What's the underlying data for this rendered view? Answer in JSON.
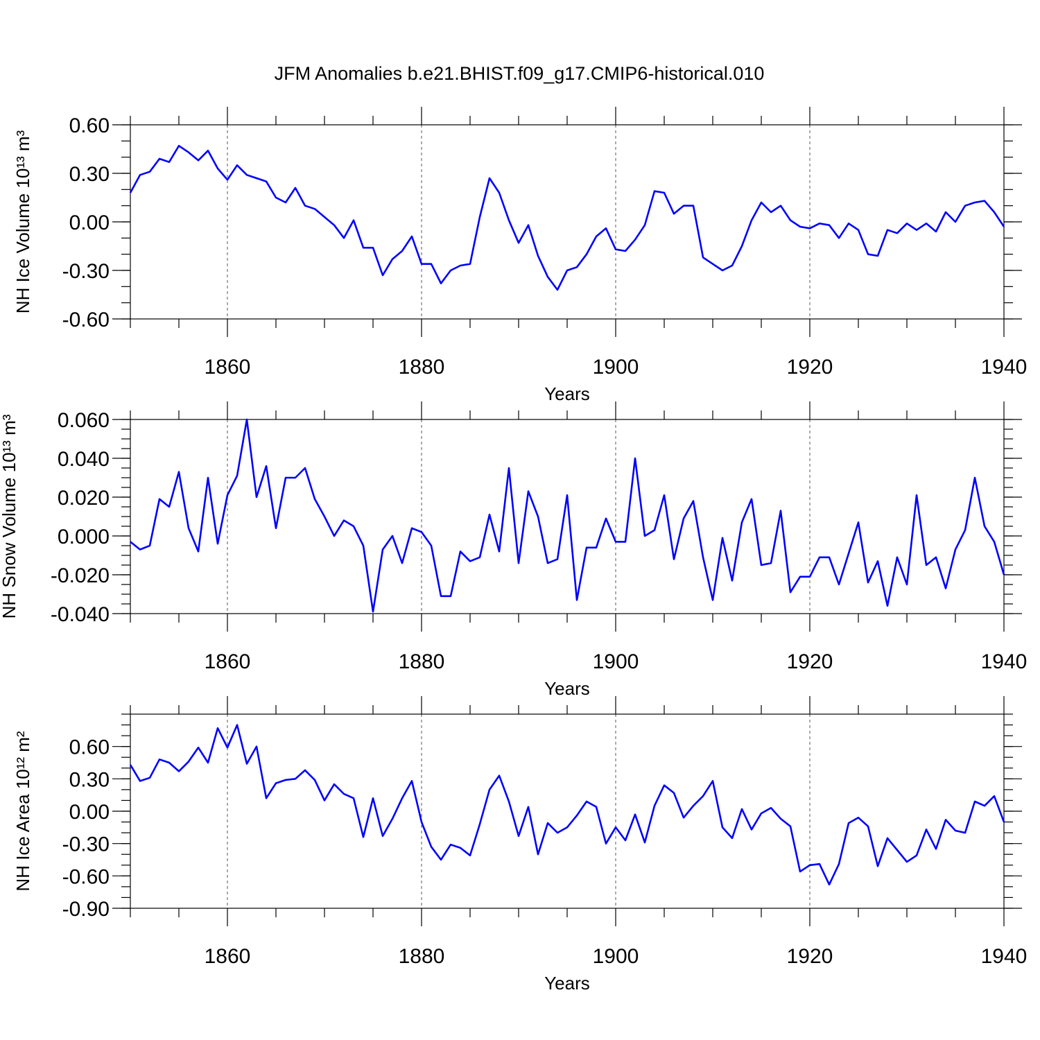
{
  "figure": {
    "title": "JFM Anomalies b.e21.BHIST.f09_g17.CMIP6-historical.010",
    "line_color": "#0000ff"
  },
  "chart_data": [
    {
      "type": "line",
      "name": "ice-volume",
      "ylabel": "NH Ice Volume 10¹³ m³",
      "xlabel": "Years",
      "xlim": [
        1850,
        1940
      ],
      "ylim": [
        -0.6,
        0.6
      ],
      "x_ticks": [
        1860,
        1880,
        1900,
        1920,
        1940
      ],
      "x_tick_labels": [
        "1860",
        "1880",
        "1900",
        "1920",
        "1940"
      ],
      "y_ticks": [
        -0.6,
        -0.3,
        0.0,
        0.3,
        0.6
      ],
      "y_tick_labels": [
        "-0.60",
        "-0.30",
        "0.00",
        "0.30",
        "0.60"
      ],
      "y_minor_step": 0.1,
      "x_start": 1850,
      "values": [
        0.18,
        0.29,
        0.31,
        0.39,
        0.37,
        0.47,
        0.43,
        0.38,
        0.44,
        0.33,
        0.26,
        0.35,
        0.29,
        0.27,
        0.25,
        0.15,
        0.12,
        0.21,
        0.1,
        0.08,
        0.03,
        -0.02,
        -0.1,
        0.01,
        -0.16,
        -0.16,
        -0.33,
        -0.23,
        -0.18,
        -0.09,
        -0.26,
        -0.26,
        -0.38,
        -0.3,
        -0.27,
        -0.26,
        0.03,
        0.27,
        0.18,
        0.01,
        -0.13,
        -0.02,
        -0.21,
        -0.34,
        -0.42,
        -0.3,
        -0.28,
        -0.2,
        -0.09,
        -0.04,
        -0.17,
        -0.18,
        -0.11,
        -0.02,
        0.19,
        0.18,
        0.05,
        0.1,
        0.1,
        -0.22,
        -0.26,
        -0.3,
        -0.27,
        -0.15,
        0.01,
        0.12,
        0.06,
        0.1,
        0.01,
        -0.03,
        -0.04,
        -0.01,
        -0.02,
        -0.1,
        -0.01,
        -0.05,
        -0.2,
        -0.21,
        -0.05,
        -0.07,
        -0.01,
        -0.05,
        -0.01,
        -0.06,
        0.06,
        0.0,
        0.1,
        0.12,
        0.13,
        0.06,
        -0.03
      ]
    },
    {
      "type": "line",
      "name": "snow-volume",
      "ylabel": "NH Snow Volume 10¹³ m³",
      "xlabel": "Years",
      "xlim": [
        1850,
        1940
      ],
      "ylim": [
        -0.04,
        0.06
      ],
      "x_ticks": [
        1860,
        1880,
        1900,
        1920,
        1940
      ],
      "x_tick_labels": [
        "1860",
        "1880",
        "1900",
        "1920",
        "1940"
      ],
      "y_ticks": [
        -0.04,
        -0.02,
        0.0,
        0.02,
        0.04,
        0.06
      ],
      "y_tick_labels": [
        "-0.040",
        "-0.020",
        "0.000",
        "0.020",
        "0.040",
        "0.060"
      ],
      "y_minor_step": 0.005,
      "x_start": 1850,
      "values": [
        -0.003,
        -0.007,
        -0.005,
        0.019,
        0.015,
        0.033,
        0.004,
        -0.008,
        0.03,
        -0.004,
        0.021,
        0.031,
        0.06,
        0.02,
        0.036,
        0.004,
        0.03,
        0.03,
        0.035,
        0.019,
        0.01,
        0.0,
        0.008,
        0.005,
        -0.005,
        -0.039,
        -0.007,
        0.0,
        -0.014,
        0.004,
        0.002,
        -0.005,
        -0.031,
        -0.031,
        -0.008,
        -0.013,
        -0.011,
        0.011,
        -0.008,
        0.035,
        -0.014,
        0.023,
        0.01,
        -0.014,
        -0.012,
        0.021,
        -0.033,
        -0.006,
        -0.006,
        0.009,
        -0.003,
        -0.003,
        0.04,
        0.0,
        0.003,
        0.021,
        -0.012,
        0.009,
        0.018,
        -0.011,
        -0.033,
        -0.001,
        -0.023,
        0.007,
        0.019,
        -0.015,
        -0.014,
        0.013,
        -0.029,
        -0.021,
        -0.021,
        -0.011,
        -0.011,
        -0.025,
        -0.009,
        0.007,
        -0.024,
        -0.013,
        -0.036,
        -0.011,
        -0.025,
        0.021,
        -0.015,
        -0.011,
        -0.027,
        -0.007,
        0.003,
        0.03,
        0.005,
        -0.003,
        -0.02
      ]
    },
    {
      "type": "line",
      "name": "ice-area",
      "ylabel": "NH Ice Area 10¹² m²",
      "xlabel": "Years",
      "xlim": [
        1850,
        1940
      ],
      "ylim": [
        -0.9,
        0.9
      ],
      "x_ticks": [
        1860,
        1880,
        1900,
        1920,
        1940
      ],
      "x_tick_labels": [
        "1860",
        "1880",
        "1900",
        "1920",
        "1940"
      ],
      "y_ticks": [
        -0.9,
        -0.6,
        -0.3,
        0.0,
        0.3,
        0.6
      ],
      "y_tick_labels": [
        "-0.90",
        "-0.60",
        "-0.30",
        "0.00",
        "0.30",
        "0.60"
      ],
      "y_minor_step": 0.1,
      "x_start": 1850,
      "values": [
        0.43,
        0.28,
        0.31,
        0.48,
        0.45,
        0.37,
        0.46,
        0.59,
        0.45,
        0.77,
        0.59,
        0.8,
        0.44,
        0.6,
        0.12,
        0.26,
        0.29,
        0.3,
        0.38,
        0.29,
        0.1,
        0.25,
        0.16,
        0.12,
        -0.24,
        0.12,
        -0.23,
        -0.07,
        0.12,
        0.28,
        -0.1,
        -0.33,
        -0.45,
        -0.31,
        -0.34,
        -0.41,
        -0.12,
        0.2,
        0.33,
        0.09,
        -0.23,
        0.04,
        -0.4,
        -0.11,
        -0.2,
        -0.15,
        -0.04,
        0.09,
        0.04,
        -0.3,
        -0.15,
        -0.27,
        -0.03,
        -0.29,
        0.05,
        0.24,
        0.17,
        -0.06,
        0.05,
        0.14,
        0.28,
        -0.15,
        -0.25,
        0.02,
        -0.17,
        -0.02,
        0.03,
        -0.07,
        -0.14,
        -0.56,
        -0.5,
        -0.49,
        -0.68,
        -0.49,
        -0.11,
        -0.06,
        -0.14,
        -0.51,
        -0.25,
        -0.36,
        -0.47,
        -0.41,
        -0.17,
        -0.35,
        -0.08,
        -0.18,
        -0.2,
        0.09,
        0.05,
        0.14,
        -0.1
      ]
    }
  ]
}
